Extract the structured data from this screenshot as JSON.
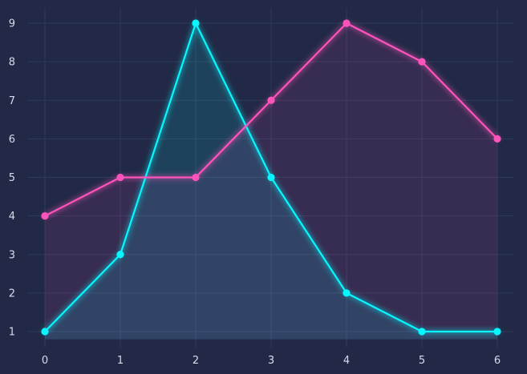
{
  "chart_data": {
    "type": "line",
    "title": "",
    "xlabel": "",
    "ylabel": "",
    "x": [
      0,
      1,
      2,
      3,
      4,
      5,
      6
    ],
    "xlim": [
      -0.15,
      6.15
    ],
    "ylim": [
      0.6,
      9.4
    ],
    "xticks": [
      "0",
      "1",
      "2",
      "3",
      "4",
      "5",
      "6"
    ],
    "yticks": [
      "1",
      "2",
      "3",
      "4",
      "5",
      "6",
      "7",
      "8",
      "9"
    ],
    "grid": true,
    "fill_area_to": 0.8,
    "legend": "none",
    "series": [
      {
        "values": [
          1,
          3,
          9,
          5,
          2,
          1,
          1
        ],
        "color": "#08F7FE"
      },
      {
        "values": [
          4,
          5,
          5,
          7,
          9,
          8,
          6
        ],
        "color": "#FE53BB"
      }
    ],
    "colors": {
      "background": "#212946",
      "plot_background": "#212946",
      "grid": "#2e3b5a",
      "text": "#d7dcec"
    }
  }
}
